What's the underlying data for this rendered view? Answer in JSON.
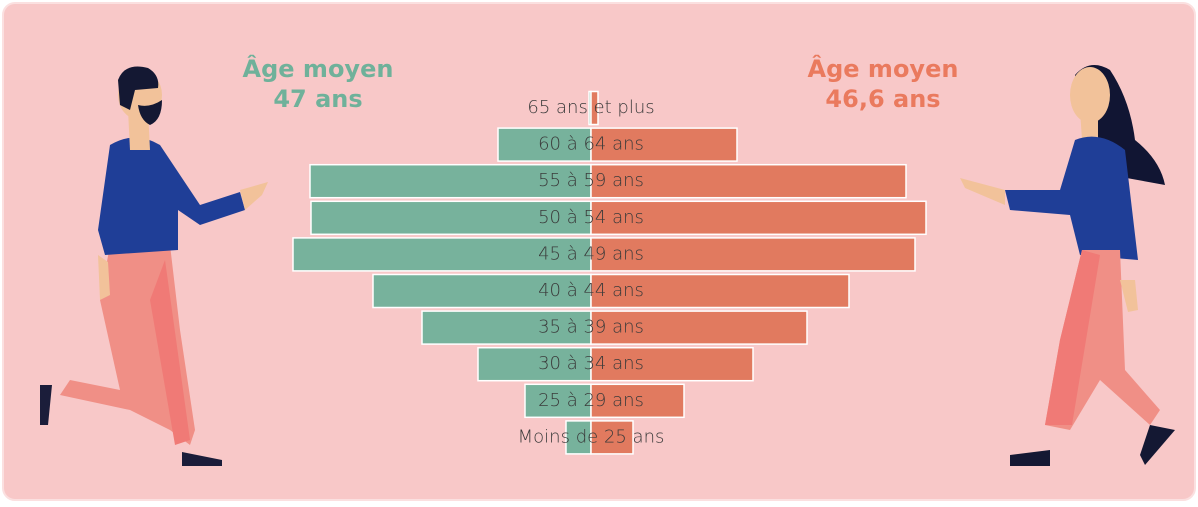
{
  "chart_data": {
    "type": "pyramid",
    "categories": [
      "65 ans et plus",
      "60 à 64 ans",
      "55 à 59 ans",
      "50 à 54 ans",
      "45 à 49 ans",
      "40 à 44 ans",
      "35 à 39 ans",
      "30 à 34 ans",
      "25 à 29 ans",
      "Moins de 25 ans"
    ],
    "series": [
      {
        "color": "#77b29c",
        "values": [
          0.2,
          9.3,
          28.1,
          28.0,
          29.8,
          21.8,
          16.9,
          11.3,
          6.6,
          2.5
        ]
      },
      {
        "color": "#e17a5f",
        "values": [
          0.7,
          14.6,
          31.5,
          33.5,
          32.4,
          25.8,
          21.6,
          16.2,
          9.3,
          4.2
        ]
      }
    ],
    "xlim": [
      0,
      35
    ],
    "annotations": [
      {
        "title": "Âge moyen",
        "value": "47 ans",
        "color": "#6fb19a"
      },
      {
        "title": "Âge moyen",
        "value": "46,6 ans",
        "color": "#ea7a5e"
      }
    ]
  }
}
